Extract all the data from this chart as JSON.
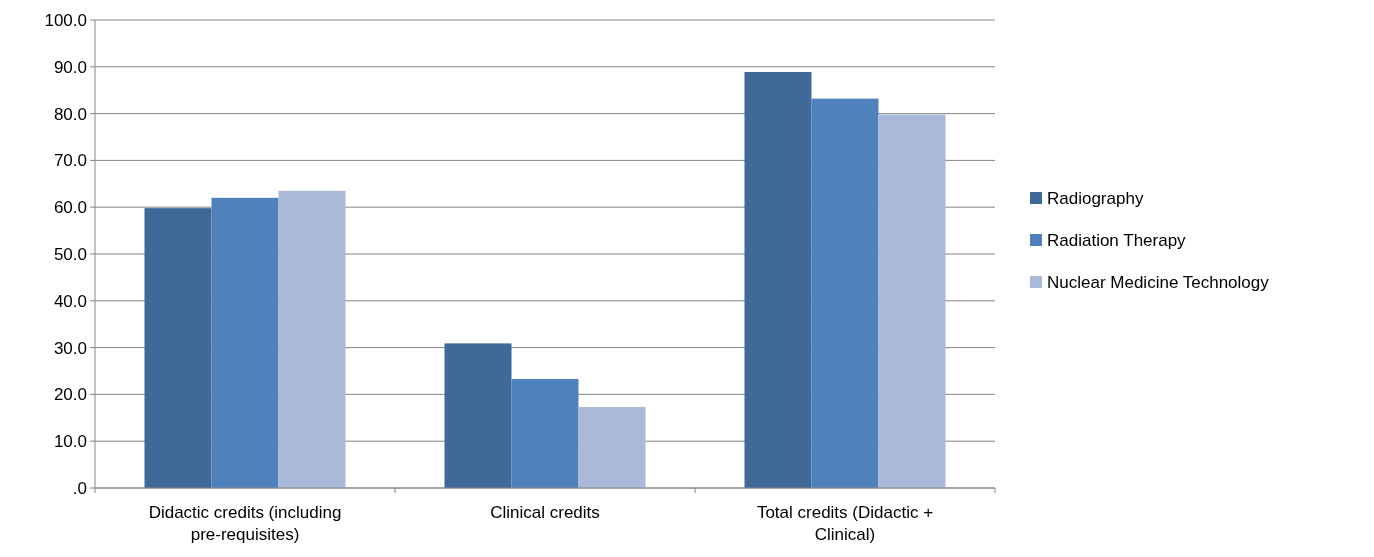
{
  "chart_data": {
    "type": "bar",
    "categories": [
      "Didactic credits (including pre-requisites)",
      "Clinical credits",
      "Total credits (Didactic + Clinical)"
    ],
    "series": [
      {
        "name": "Radiography",
        "color": "#3f6998",
        "values": [
          59.8,
          30.9,
          88.9
        ]
      },
      {
        "name": "Radiation Therapy",
        "color": "#4f81bd",
        "values": [
          62.0,
          23.3,
          83.2
        ]
      },
      {
        "name": "Nuclear Medicine Technology",
        "color": "#aab9d8",
        "values": [
          63.5,
          17.3,
          79.8
        ]
      }
    ],
    "ylim": [
      0,
      100
    ],
    "yticks": [
      {
        "value": 0,
        "label": ".0"
      },
      {
        "value": 10,
        "label": "10.0"
      },
      {
        "value": 20,
        "label": "20.0"
      },
      {
        "value": 30,
        "label": "30.0"
      },
      {
        "value": 40,
        "label": "40.0"
      },
      {
        "value": 50,
        "label": "50.0"
      },
      {
        "value": 60,
        "label": "60.0"
      },
      {
        "value": 70,
        "label": "70.0"
      },
      {
        "value": 80,
        "label": "80.0"
      },
      {
        "value": 90,
        "label": "90.0"
      },
      {
        "value": 100,
        "label": "100.0"
      }
    ],
    "grid": "y",
    "legend": "right"
  }
}
